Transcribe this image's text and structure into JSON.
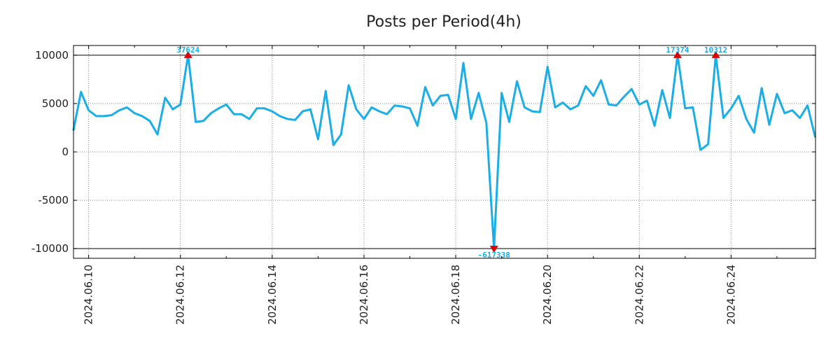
{
  "chart_data": {
    "type": "line",
    "title": "Posts per Period(4h)",
    "xlabel": "",
    "ylabel": "",
    "x_start": "2024.06.09 16:00",
    "x_end": "2024.06.25 20:00",
    "interval_hours": 4,
    "xlim_days": [
      -0.33,
      15.84
    ],
    "ylim": [
      -11000,
      11000
    ],
    "clip": [
      -10000,
      10000
    ],
    "grid": true,
    "line_color": "#1aaee8",
    "marker_color": "#dd0000",
    "yticks": [
      {
        "value": 10000,
        "label": "10000"
      },
      {
        "value": 5000,
        "label": "5000"
      },
      {
        "value": 0,
        "label": "0"
      },
      {
        "value": -5000,
        "label": "-5000"
      },
      {
        "value": -10000,
        "label": "-10000"
      }
    ],
    "xticks": [
      {
        "day": 0,
        "label": "2024.06.10"
      },
      {
        "day": 2,
        "label": "2024.06.12"
      },
      {
        "day": 4,
        "label": "2024.06.14"
      },
      {
        "day": 6,
        "label": "2024.06.16"
      },
      {
        "day": 8,
        "label": "2024.06.18"
      },
      {
        "day": 10,
        "label": "2024.06.20"
      },
      {
        "day": 12,
        "label": "2024.06.22"
      },
      {
        "day": 14,
        "label": "2024.06.24"
      }
    ],
    "series": [
      {
        "name": "posts",
        "values": [
          2200,
          6200,
          4300,
          3700,
          3700,
          3800,
          4300,
          4600,
          4000,
          3700,
          3200,
          1800,
          5600,
          4400,
          4900,
          10000,
          3100,
          3200,
          4000,
          4500,
          4900,
          3900,
          3900,
          3400,
          4500,
          4500,
          4200,
          3700,
          3400,
          3300,
          4200,
          4400,
          1300,
          6300,
          700,
          1800,
          6900,
          4400,
          3400,
          4600,
          4200,
          3900,
          4800,
          4700,
          4500,
          2700,
          6700,
          4800,
          5800,
          5900,
          3400,
          9200,
          3400,
          6100,
          3000,
          -10000,
          6100,
          3100,
          7300,
          4600,
          4200,
          4100,
          8800,
          4600,
          5100,
          4400,
          4800,
          6800,
          5800,
          7400,
          4900,
          4800,
          5700,
          6500,
          4900,
          5300,
          2700,
          6400,
          3500,
          10000,
          4500,
          4600,
          200,
          800,
          10000,
          3500,
          4500,
          5800,
          3400,
          2000,
          6600,
          2800,
          6000,
          4000,
          4300,
          3500,
          4800,
          1500
        ]
      }
    ],
    "annotations": [
      {
        "index": 15,
        "value": 10000,
        "label": "37624",
        "direction": "up"
      },
      {
        "index": 55,
        "value": -10000,
        "label": "-617338",
        "direction": "down"
      },
      {
        "index": 79,
        "value": 10000,
        "label": "17374",
        "direction": "up"
      },
      {
        "index": 84,
        "value": 10000,
        "label": "10312",
        "direction": "up"
      }
    ]
  }
}
